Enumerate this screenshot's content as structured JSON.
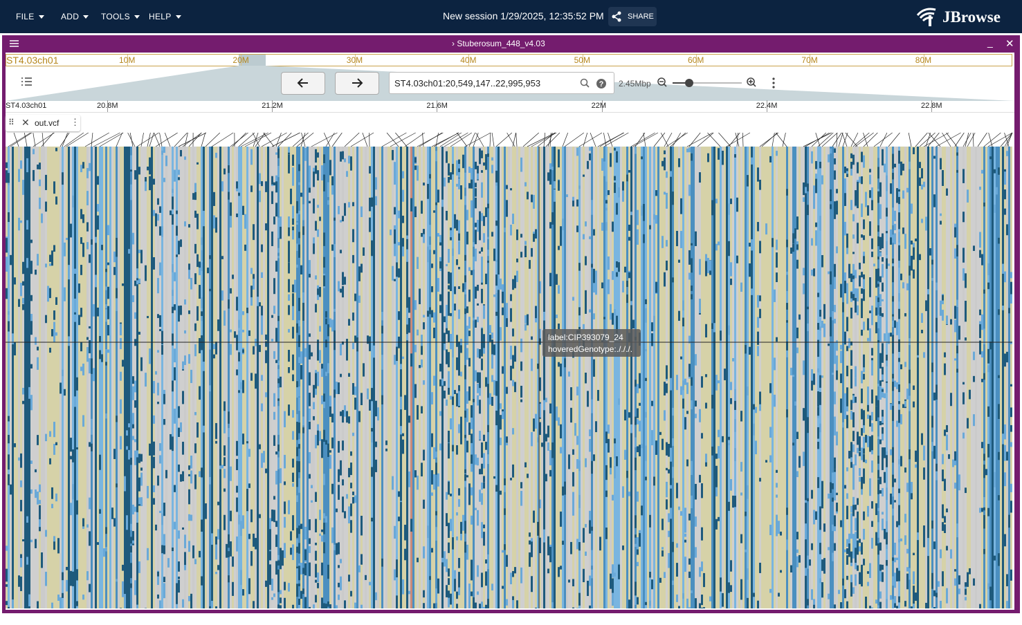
{
  "header": {
    "menus": [
      "FILE",
      "ADD",
      "TOOLS",
      "HELP"
    ],
    "session": "New session 1/29/2025, 12:35:52 PM",
    "share": "SHARE",
    "logo": "JBrowse"
  },
  "view": {
    "title": "Stuberosum_448_v4.03",
    "overview": {
      "refname": "ST4.03ch01",
      "ticks": [
        "10M",
        "20M",
        "30M",
        "40M",
        "50M",
        "60M",
        "70M",
        "80M"
      ]
    },
    "location": "ST4.03ch01:20,549,147..22,995,953",
    "zoom": "2.45Mbp",
    "ruler": {
      "refname": "ST4.03ch01",
      "ticks": [
        "20.8M",
        "21.2M",
        "21.6M",
        "22M",
        "22.4M",
        "22.8M"
      ]
    },
    "track": {
      "name": "out.vcf"
    },
    "tooltip": {
      "label": "label:CIP393079_24",
      "genotype": "hoveredGenotype:./././."
    }
  }
}
